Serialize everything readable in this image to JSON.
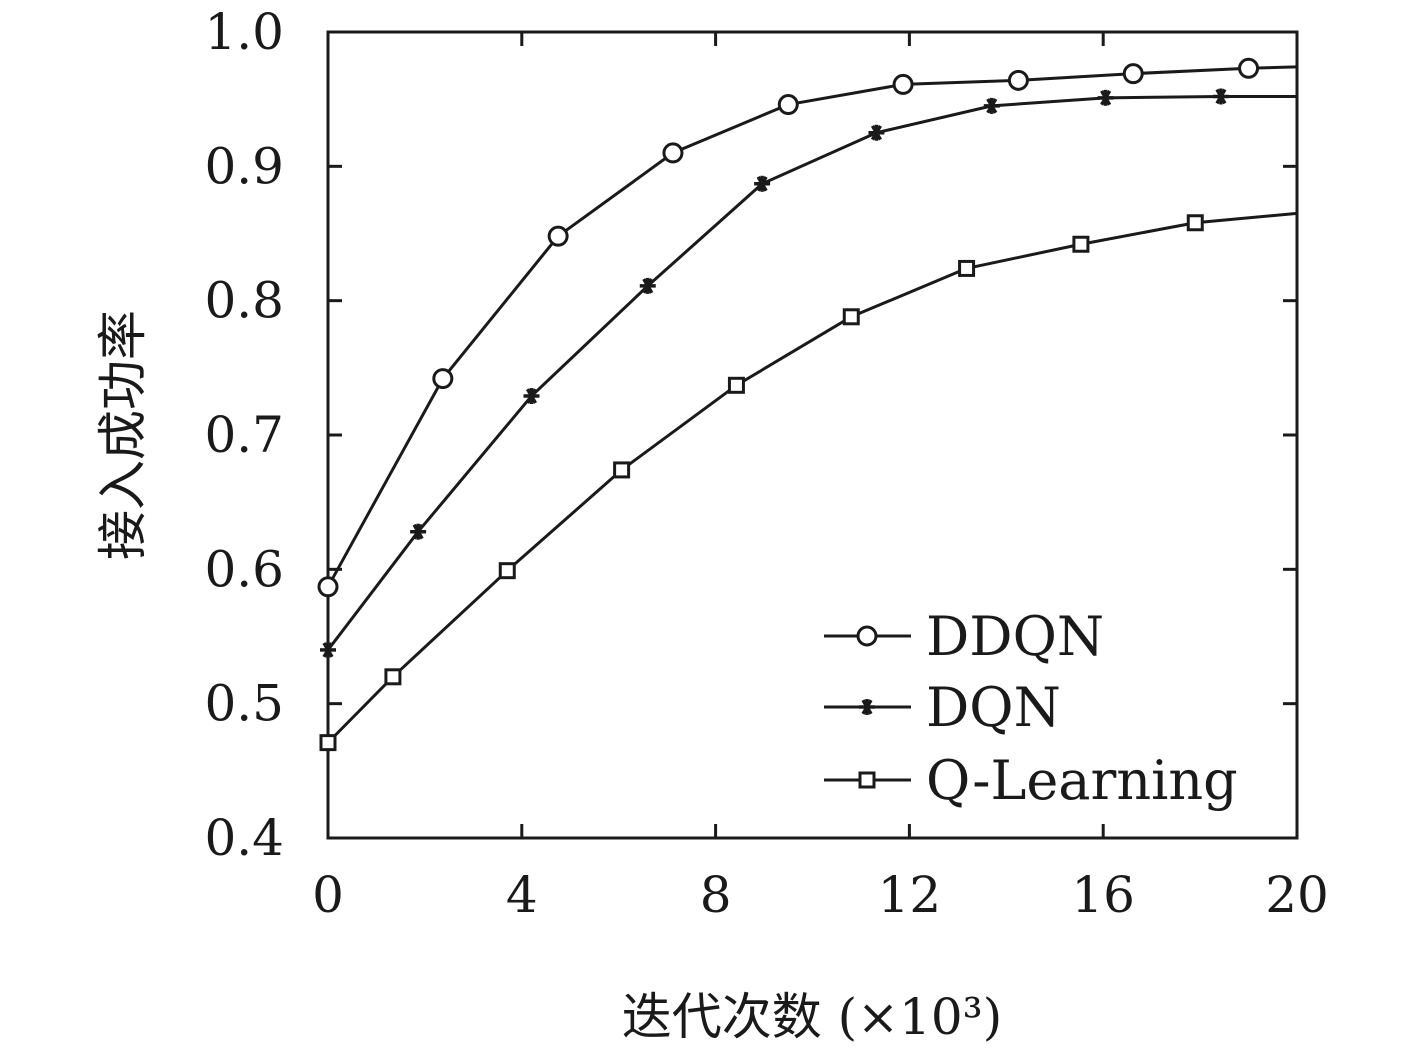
{
  "chart_data": {
    "type": "line",
    "title": "",
    "xlabel": "迭代次数 (×10³)",
    "ylabel": "接入成功率",
    "xlim": [
      0,
      20
    ],
    "ylim": [
      0.4,
      1.0
    ],
    "x_ticks": [
      "0",
      "4",
      "8",
      "12",
      "16",
      "20"
    ],
    "y_ticks": [
      "0.4",
      "0.5",
      "0.6",
      "0.7",
      "0.8",
      "0.9",
      "1.0"
    ],
    "grid": false,
    "legend_position": "bottom-right",
    "series": [
      {
        "name": "DDQN",
        "marker": "circle",
        "color": "#1a1a1a",
        "x": [
          0,
          2.37,
          4.75,
          7.12,
          9.5,
          11.87,
          14.25,
          16.62,
          19.0,
          20.0
        ],
        "y": [
          0.587,
          0.742,
          0.848,
          0.91,
          0.946,
          0.961,
          0.964,
          0.969,
          0.973,
          0.974
        ]
      },
      {
        "name": "DQN",
        "marker": "asterisk",
        "color": "#1a1a1a",
        "x": [
          0,
          1.86,
          4.2,
          6.6,
          8.96,
          11.32,
          13.7,
          16.05,
          18.43,
          20.0
        ],
        "y": [
          0.54,
          0.628,
          0.729,
          0.811,
          0.887,
          0.925,
          0.945,
          0.951,
          0.952,
          0.952
        ]
      },
      {
        "name": "Q-Learning",
        "marker": "square",
        "color": "#1a1a1a",
        "x": [
          0,
          1.34,
          3.7,
          6.06,
          8.43,
          10.8,
          13.18,
          15.54,
          17.9,
          20.0
        ],
        "y": [
          0.471,
          0.52,
          0.599,
          0.674,
          0.737,
          0.788,
          0.824,
          0.842,
          0.858,
          0.865
        ]
      }
    ]
  }
}
